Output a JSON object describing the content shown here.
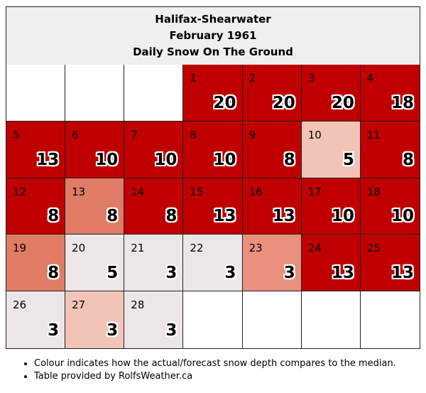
{
  "header": {
    "station": "Halifax-Shearwater",
    "period": "February 1961",
    "subtitle": "Daily Snow On The Ground"
  },
  "colors": {
    "dark_red": "#c00000",
    "medium_red": "#e07b65",
    "light_red": "#e9907e",
    "pink": "#f2c4b8",
    "pale": "#ece6e8",
    "empty": "#ffffff"
  },
  "calendar": {
    "leading_blank_cells": 3,
    "trailing_blank_cells": 4,
    "days": [
      {
        "day": "1",
        "depth": "20",
        "tone": "dark_red"
      },
      {
        "day": "2",
        "depth": "20",
        "tone": "dark_red"
      },
      {
        "day": "3",
        "depth": "20",
        "tone": "dark_red"
      },
      {
        "day": "4",
        "depth": "18",
        "tone": "dark_red"
      },
      {
        "day": "5",
        "depth": "13",
        "tone": "dark_red"
      },
      {
        "day": "6",
        "depth": "10",
        "tone": "dark_red"
      },
      {
        "day": "7",
        "depth": "10",
        "tone": "dark_red"
      },
      {
        "day": "8",
        "depth": "10",
        "tone": "dark_red"
      },
      {
        "day": "9",
        "depth": "8",
        "tone": "dark_red"
      },
      {
        "day": "10",
        "depth": "5",
        "tone": "pink"
      },
      {
        "day": "11",
        "depth": "8",
        "tone": "dark_red"
      },
      {
        "day": "12",
        "depth": "8",
        "tone": "dark_red"
      },
      {
        "day": "13",
        "depth": "8",
        "tone": "medium_red"
      },
      {
        "day": "14",
        "depth": "8",
        "tone": "dark_red"
      },
      {
        "day": "15",
        "depth": "13",
        "tone": "dark_red"
      },
      {
        "day": "16",
        "depth": "13",
        "tone": "dark_red"
      },
      {
        "day": "17",
        "depth": "10",
        "tone": "dark_red"
      },
      {
        "day": "18",
        "depth": "10",
        "tone": "dark_red"
      },
      {
        "day": "19",
        "depth": "8",
        "tone": "medium_red"
      },
      {
        "day": "20",
        "depth": "5",
        "tone": "pale"
      },
      {
        "day": "21",
        "depth": "3",
        "tone": "pale"
      },
      {
        "day": "22",
        "depth": "3",
        "tone": "pale"
      },
      {
        "day": "23",
        "depth": "3",
        "tone": "light_red"
      },
      {
        "day": "24",
        "depth": "13",
        "tone": "dark_red"
      },
      {
        "day": "25",
        "depth": "13",
        "tone": "dark_red"
      },
      {
        "day": "26",
        "depth": "3",
        "tone": "pale"
      },
      {
        "day": "27",
        "depth": "3",
        "tone": "pink"
      },
      {
        "day": "28",
        "depth": "3",
        "tone": "pale"
      }
    ]
  },
  "notes": [
    "Colour indicates how the actual/forecast snow depth compares to the median.",
    "Table provided by RolfsWeather.ca"
  ]
}
